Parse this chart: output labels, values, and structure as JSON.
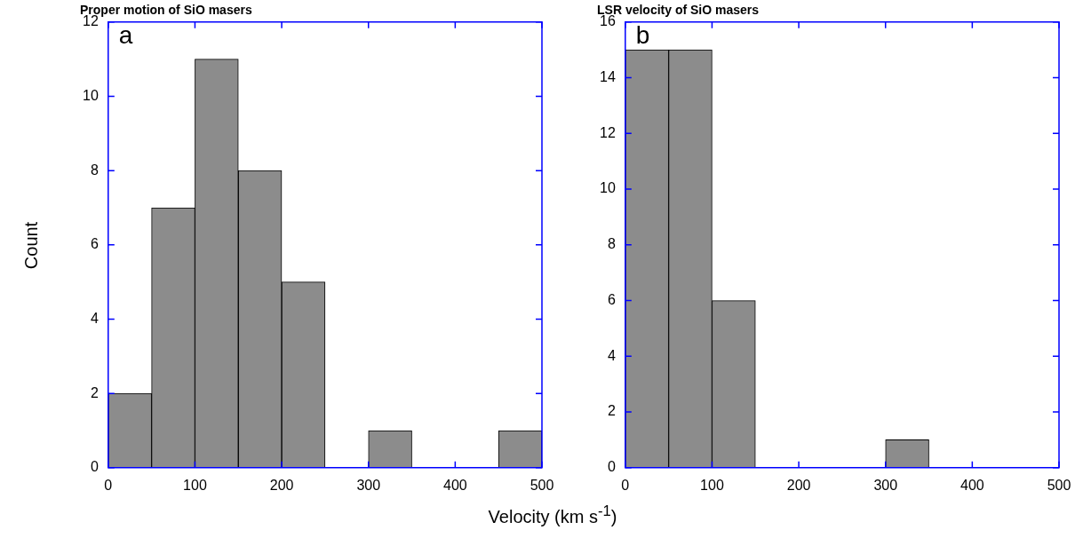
{
  "chart_data": [
    {
      "type": "histogram",
      "title": "Proper motion of SiO masers",
      "ylabel": "Count",
      "annotations": [
        "a"
      ],
      "bins": [
        0,
        50,
        100,
        150,
        200,
        250,
        300,
        350,
        400,
        450,
        500
      ],
      "values": [
        2,
        7,
        11,
        8,
        5,
        0,
        1,
        0,
        0,
        1
      ],
      "color": "#8c8c8c",
      "xlim": [
        0,
        500
      ],
      "xticks": [
        0,
        100,
        200,
        300,
        400,
        500
      ],
      "ylim": [
        0,
        12
      ],
      "yticks": [
        0,
        2,
        4,
        6,
        8,
        10,
        12
      ]
    },
    {
      "type": "histogram",
      "title": "LSR velocity of SiO masers",
      "xlabel": "Velocity (km s$^{-1}$)",
      "annotations": [
        "b"
      ],
      "bins": [
        0,
        50,
        100,
        150,
        200,
        250,
        300,
        350,
        400,
        450,
        500
      ],
      "values": [
        15,
        15,
        6,
        0,
        0,
        0,
        1,
        0,
        0,
        0
      ],
      "color": "#8c8c8c",
      "xlim": [
        0,
        500
      ],
      "xticks": [
        0,
        100,
        200,
        300,
        400,
        500
      ],
      "ylim": [
        0,
        16
      ],
      "yticks": [
        0,
        2,
        4,
        6,
        8,
        10,
        12,
        14,
        16
      ]
    }
  ]
}
